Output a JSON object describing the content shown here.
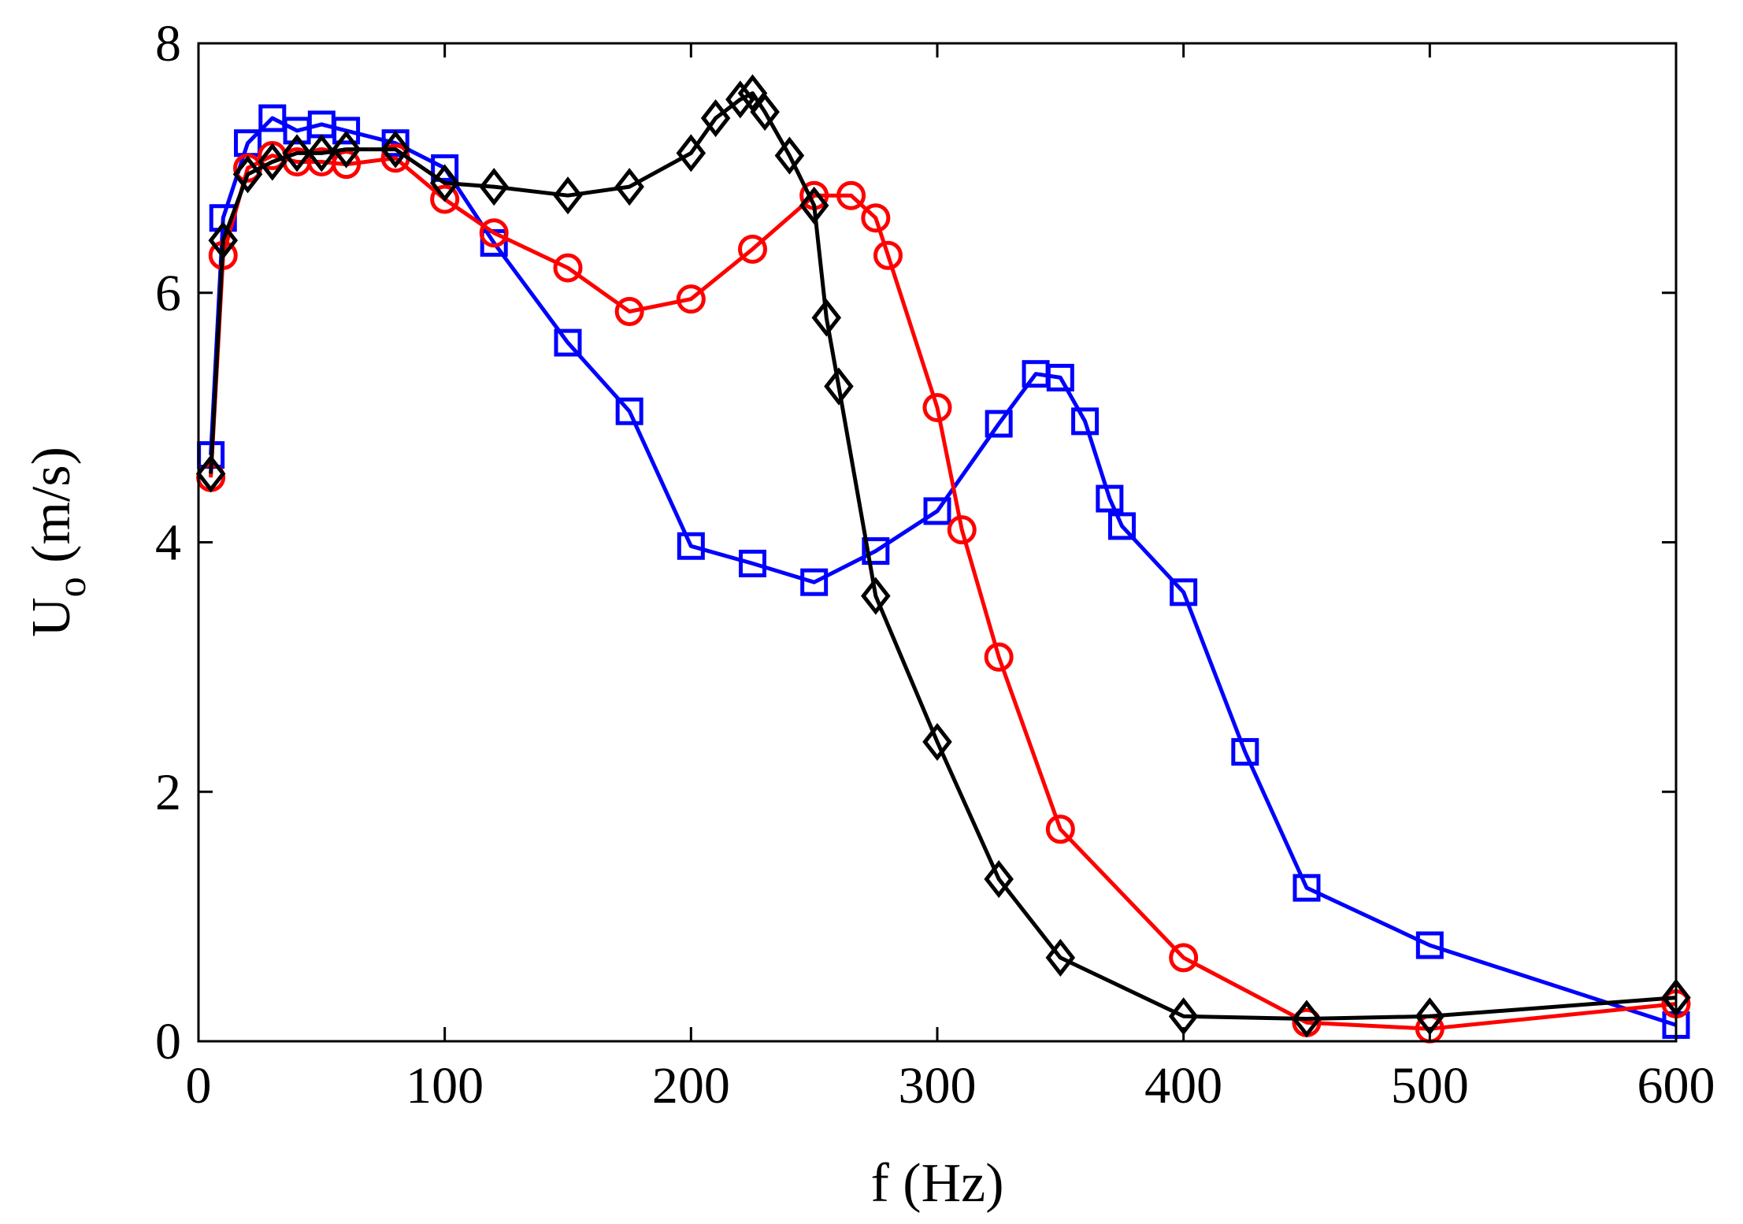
{
  "chart_data": {
    "type": "line",
    "title": "",
    "xlabel": "f (Hz)",
    "ylabel": {
      "main": "U",
      "subscript": "o",
      "unit": " (m/s)"
    },
    "xlim": [
      0,
      600
    ],
    "ylim": [
      0,
      8
    ],
    "xticks": [
      0,
      100,
      200,
      300,
      400,
      500,
      600
    ],
    "yticks": [
      0,
      2,
      4,
      6,
      8
    ],
    "grid": false,
    "legend": "none",
    "series": [
      {
        "name": "blue-squares",
        "color": "#0000ff",
        "marker": "square",
        "x": [
          5,
          10,
          20,
          30,
          40,
          50,
          60,
          80,
          100,
          120,
          150,
          175,
          200,
          225,
          250,
          275,
          300,
          325,
          340,
          350,
          360,
          370,
          375,
          400,
          425,
          450,
          500,
          600
        ],
        "y": [
          4.7,
          6.6,
          7.2,
          7.4,
          7.3,
          7.35,
          7.3,
          7.2,
          7.0,
          6.4,
          5.6,
          5.05,
          3.97,
          3.83,
          3.68,
          3.93,
          4.25,
          4.95,
          5.35,
          5.32,
          4.97,
          4.35,
          4.13,
          3.6,
          2.32,
          1.23,
          0.77,
          0.13
        ]
      },
      {
        "name": "red-circles",
        "color": "#ff0000",
        "marker": "circle",
        "x": [
          5,
          10,
          20,
          30,
          40,
          50,
          60,
          80,
          100,
          120,
          150,
          175,
          200,
          225,
          250,
          265,
          275,
          280,
          300,
          310,
          325,
          350,
          400,
          450,
          500,
          600
        ],
        "y": [
          4.52,
          6.3,
          7.0,
          7.1,
          7.05,
          7.05,
          7.03,
          7.08,
          6.75,
          6.48,
          6.2,
          5.85,
          5.95,
          6.35,
          6.78,
          6.78,
          6.6,
          6.3,
          5.08,
          4.1,
          3.08,
          1.7,
          0.67,
          0.15,
          0.1,
          0.3
        ]
      },
      {
        "name": "black-diamonds",
        "color": "#000000",
        "marker": "diamond",
        "x": [
          5,
          10,
          20,
          30,
          40,
          50,
          60,
          80,
          100,
          120,
          150,
          175,
          200,
          210,
          220,
          225,
          230,
          240,
          250,
          255,
          260,
          275,
          300,
          325,
          350,
          400,
          450,
          500,
          600
        ],
        "y": [
          4.55,
          6.42,
          6.95,
          7.05,
          7.12,
          7.12,
          7.15,
          7.15,
          6.88,
          6.85,
          6.78,
          6.85,
          7.12,
          7.4,
          7.55,
          7.6,
          7.45,
          7.1,
          6.7,
          5.8,
          5.25,
          3.57,
          2.4,
          1.3,
          0.67,
          0.2,
          0.18,
          0.2,
          0.35
        ]
      }
    ]
  }
}
